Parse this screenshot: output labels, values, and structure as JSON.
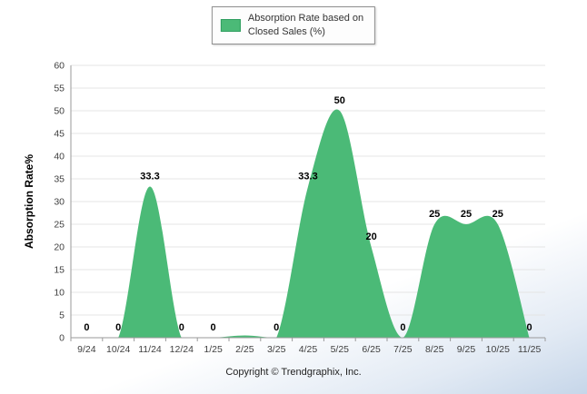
{
  "legend": {
    "line1": "Absorption Rate based on",
    "line2": "Closed Sales (%)",
    "swatch_color": "#4bba77",
    "swatch_border": "#2f9e5f"
  },
  "axis": {
    "y_title": "Absorption Rate%"
  },
  "footer": {
    "copyright": "Copyright © Trendgraphix, Inc."
  },
  "chart_data": {
    "type": "area",
    "title": "",
    "series_name": "Absorption Rate based on Closed Sales (%)",
    "categories": [
      "9/24",
      "10/24",
      "11/24",
      "12/24",
      "1/25",
      "2/25",
      "3/25",
      "4/25",
      "5/25",
      "6/25",
      "7/25",
      "8/25",
      "9/25",
      "10/25",
      "11/25"
    ],
    "values": [
      0,
      0,
      33.3,
      0,
      0,
      0.5,
      0,
      33.3,
      50,
      20,
      0,
      25,
      25,
      25,
      0
    ],
    "point_labels": [
      "0",
      "0",
      "33.3",
      "0",
      "0",
      "",
      "0",
      "33.3",
      "50",
      "20",
      "0",
      "25",
      "25",
      "25",
      "0"
    ],
    "xlabel": "",
    "ylabel": "Absorption Rate%",
    "ylim": [
      0,
      60
    ],
    "ytick_step": 5,
    "yticks": [
      0,
      5,
      10,
      15,
      20,
      25,
      30,
      35,
      40,
      45,
      50,
      55,
      60
    ],
    "grid": true,
    "legend_position": "top-center",
    "colors": {
      "area": "#4bba77",
      "grid": "#e4e4e4",
      "axis": "#9a9a9a",
      "label": "#000000",
      "tick_text": "#3f3f3f"
    }
  }
}
